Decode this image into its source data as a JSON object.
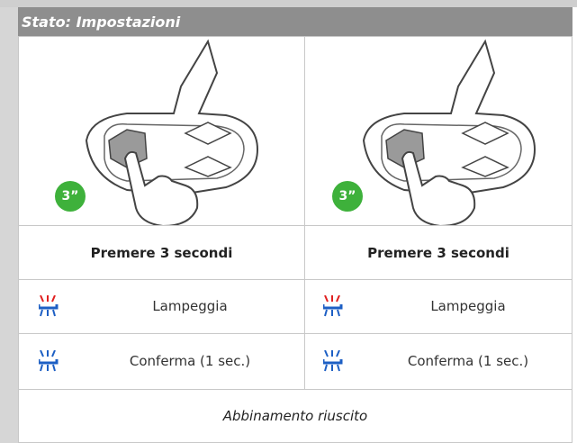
{
  "header": {
    "title": "Stato: Impostazioni"
  },
  "columns": [
    {
      "badge": "3”",
      "action": "Premere 3 secondi",
      "rows": [
        {
          "label": "Lampeggia"
        },
        {
          "label": "Conferma (1 sec.)"
        }
      ]
    },
    {
      "badge": "3”",
      "action": "Premere 3 secondi",
      "rows": [
        {
          "label": "Lampeggia"
        },
        {
          "label": "Conferma (1 sec.)"
        }
      ]
    }
  ],
  "footer": "Abbinamento riuscito"
}
